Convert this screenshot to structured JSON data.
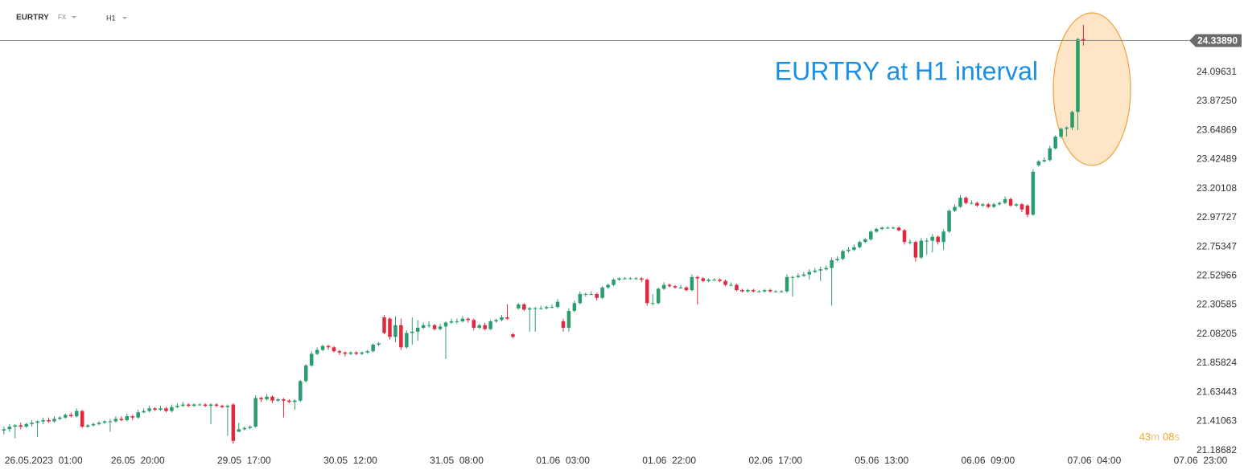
{
  "header": {
    "symbol": "EURTRY",
    "market": "FX",
    "interval": "H1"
  },
  "countdown": [
    "43",
    "m",
    "08",
    "s"
  ],
  "chart_data": {
    "type": "candlestick",
    "annotation": "EURTRY at H1 interval",
    "up_color": "#2a9d6e",
    "down_color": "#e0283e",
    "last_price": {
      "value": 24.3389,
      "label": "24.33890"
    },
    "ylim": [
      21.16,
      24.62
    ],
    "yticks": [
      21.18682,
      21.41063,
      21.63443,
      21.85824,
      22.08205,
      22.30585,
      22.52966,
      22.75347,
      22.97727,
      23.20108,
      23.42489,
      23.64869,
      {
        "value": 23.8725,
        "label": "23.87250"
      },
      24.09631
    ],
    "xlim": [
      -0.7,
      211.5
    ],
    "xticks": [
      {
        "value": 0,
        "label": "26.05.2023  01:00"
      },
      {
        "value": 19,
        "label": "26.05  20:00"
      },
      {
        "value": 38,
        "label": "29.05  17:00"
      },
      {
        "value": 57,
        "label": "30.05  12:00"
      },
      {
        "value": 76,
        "label": "31.05  08:00"
      },
      {
        "value": 95,
        "label": "01.06  03:00"
      },
      {
        "value": 114,
        "label": "01.06  22:00"
      },
      {
        "value": 133,
        "label": "02.06  17:00"
      },
      {
        "value": 152,
        "label": "05.06  13:00"
      },
      {
        "value": 171,
        "label": "06.06  09:00"
      },
      {
        "value": 190,
        "label": "07.06  04:00"
      },
      {
        "value": 209,
        "label": "07.06  23:00"
      }
    ],
    "ohlc": [
      [
        21.34,
        21.37,
        21.31,
        21.35
      ],
      [
        21.35,
        21.39,
        21.33,
        21.37
      ],
      [
        21.37,
        21.39,
        21.28,
        21.38
      ],
      [
        21.38,
        21.4,
        21.35,
        21.37
      ],
      [
        21.37,
        21.4,
        21.36,
        21.39
      ],
      [
        21.39,
        21.42,
        21.37,
        21.4
      ],
      [
        21.4,
        21.42,
        21.29,
        21.41
      ],
      [
        21.41,
        21.44,
        21.39,
        21.42
      ],
      [
        21.42,
        21.44,
        21.4,
        21.41
      ],
      [
        21.41,
        21.45,
        21.4,
        21.43
      ],
      [
        21.43,
        21.45,
        21.42,
        21.44
      ],
      [
        21.44,
        21.47,
        21.43,
        21.46
      ],
      [
        21.46,
        21.48,
        21.44,
        21.45
      ],
      [
        21.45,
        21.51,
        21.44,
        21.49
      ],
      [
        21.49,
        21.5,
        21.36,
        21.37
      ],
      [
        21.37,
        21.39,
        21.36,
        21.38
      ],
      [
        21.38,
        21.4,
        21.37,
        21.39
      ],
      [
        21.39,
        21.41,
        21.38,
        21.4
      ],
      [
        21.4,
        21.42,
        21.39,
        21.41
      ],
      [
        21.41,
        21.43,
        21.33,
        21.41
      ],
      [
        21.41,
        21.45,
        21.4,
        21.43
      ],
      [
        21.43,
        21.45,
        21.41,
        21.42
      ],
      [
        21.42,
        21.47,
        21.41,
        21.45
      ],
      [
        21.45,
        21.46,
        21.42,
        21.44
      ],
      [
        21.44,
        21.5,
        21.43,
        21.48
      ],
      [
        21.48,
        21.51,
        21.47,
        21.49
      ],
      [
        21.49,
        21.53,
        21.48,
        21.51
      ],
      [
        21.51,
        21.52,
        21.49,
        21.5
      ],
      [
        21.5,
        21.53,
        21.49,
        21.51
      ],
      [
        21.51,
        21.52,
        21.48,
        21.49
      ],
      [
        21.49,
        21.54,
        21.48,
        21.52
      ],
      [
        21.52,
        21.55,
        21.51,
        21.53
      ],
      [
        21.53,
        21.56,
        21.52,
        21.54
      ],
      [
        21.54,
        21.55,
        21.52,
        21.53
      ],
      [
        21.53,
        21.55,
        21.52,
        21.54
      ],
      [
        21.54,
        21.55,
        21.53,
        21.54
      ],
      [
        21.54,
        21.55,
        21.52,
        21.53
      ],
      [
        21.53,
        21.55,
        21.39,
        21.54
      ],
      [
        21.54,
        21.55,
        21.52,
        21.53
      ],
      [
        21.53,
        21.54,
        21.51,
        21.52
      ],
      [
        21.52,
        21.54,
        21.3,
        21.53
      ],
      [
        21.54,
        21.55,
        21.24,
        21.26
      ],
      [
        21.33,
        21.4,
        21.33,
        21.35
      ],
      [
        21.35,
        21.37,
        21.34,
        21.36
      ],
      [
        21.36,
        21.38,
        21.35,
        21.37
      ],
      [
        21.37,
        21.61,
        21.36,
        21.59
      ],
      [
        21.59,
        21.6,
        21.56,
        21.58
      ],
      [
        21.58,
        21.62,
        21.57,
        21.6
      ],
      [
        21.6,
        21.61,
        21.55,
        21.57
      ],
      [
        21.57,
        21.59,
        21.56,
        21.58
      ],
      [
        21.58,
        21.59,
        21.44,
        21.57
      ],
      [
        21.57,
        21.58,
        21.55,
        21.56
      ],
      [
        21.56,
        21.58,
        21.5,
        21.57
      ],
      [
        21.57,
        21.73,
        21.56,
        21.72
      ],
      [
        21.72,
        21.85,
        21.71,
        21.84
      ],
      [
        21.84,
        21.95,
        21.83,
        21.93
      ],
      [
        21.93,
        21.98,
        21.92,
        21.96
      ],
      [
        21.96,
        22.0,
        21.95,
        21.99
      ],
      [
        21.99,
        22.0,
        21.96,
        21.98
      ],
      [
        21.98,
        21.99,
        21.94,
        21.95
      ],
      [
        21.95,
        21.96,
        21.92,
        21.94
      ],
      [
        21.94,
        21.95,
        21.91,
        21.93
      ],
      [
        21.93,
        21.95,
        21.92,
        21.94
      ],
      [
        21.94,
        21.95,
        21.92,
        21.93
      ],
      [
        21.93,
        21.95,
        21.92,
        21.94
      ],
      [
        21.94,
        21.96,
        21.93,
        21.95
      ],
      [
        21.95,
        22.01,
        21.94,
        22.0
      ],
      [
        22.0,
        22.02,
        21.99,
        22.01
      ],
      [
        22.21,
        22.23,
        22.08,
        22.09
      ],
      [
        22.2,
        22.21,
        22.04,
        22.06
      ],
      [
        22.06,
        22.22,
        22.02,
        22.15
      ],
      [
        22.15,
        22.2,
        21.96,
        21.98
      ],
      [
        21.98,
        22.11,
        21.97,
        22.09
      ],
      [
        22.09,
        22.21,
        22.0,
        22.1
      ],
      [
        22.1,
        22.19,
        22.03,
        22.13
      ],
      [
        22.13,
        22.17,
        22.12,
        22.15
      ],
      [
        22.15,
        22.18,
        22.13,
        22.15
      ],
      [
        22.15,
        22.16,
        22.11,
        22.12
      ],
      [
        22.12,
        22.16,
        22.11,
        22.14
      ],
      [
        22.14,
        22.18,
        21.89,
        22.17
      ],
      [
        22.17,
        22.2,
        22.16,
        22.18
      ],
      [
        22.18,
        22.2,
        22.16,
        22.18
      ],
      [
        22.18,
        22.22,
        22.17,
        22.2
      ],
      [
        22.2,
        22.21,
        22.17,
        22.19
      ],
      [
        22.19,
        22.2,
        22.11,
        22.13
      ],
      [
        22.13,
        22.16,
        22.12,
        22.15
      ],
      [
        22.15,
        22.17,
        22.11,
        22.12
      ],
      [
        22.12,
        22.19,
        22.11,
        22.18
      ],
      [
        22.18,
        22.2,
        22.17,
        22.19
      ],
      [
        22.19,
        22.23,
        22.18,
        22.21
      ],
      [
        22.21,
        22.31,
        22.19,
        22.2
      ],
      [
        22.08,
        22.09,
        22.05,
        22.06
      ],
      [
        22.28,
        22.32,
        22.27,
        22.31
      ],
      [
        22.31,
        22.32,
        22.26,
        22.27
      ],
      [
        22.27,
        22.29,
        22.1,
        22.28
      ],
      [
        22.28,
        22.29,
        22.1,
        22.28
      ],
      [
        22.28,
        22.3,
        22.27,
        22.28
      ],
      [
        22.28,
        22.3,
        22.27,
        22.29
      ],
      [
        22.29,
        22.31,
        22.28,
        22.29
      ],
      [
        22.29,
        22.35,
        22.28,
        22.33
      ],
      [
        22.18,
        22.2,
        22.1,
        22.13
      ],
      [
        22.13,
        22.28,
        22.1,
        22.26
      ],
      [
        22.26,
        22.34,
        22.25,
        22.32
      ],
      [
        22.32,
        22.41,
        22.31,
        22.39
      ],
      [
        22.39,
        22.4,
        22.37,
        22.39
      ],
      [
        22.39,
        22.41,
        22.38,
        22.39
      ],
      [
        22.39,
        22.4,
        22.34,
        22.36
      ],
      [
        22.36,
        22.45,
        22.35,
        22.44
      ],
      [
        22.44,
        22.47,
        22.43,
        22.46
      ],
      [
        22.46,
        22.51,
        22.45,
        22.5
      ],
      [
        22.5,
        22.52,
        22.49,
        22.51
      ],
      [
        22.51,
        22.52,
        22.5,
        22.51
      ],
      [
        22.51,
        22.52,
        22.5,
        22.51
      ],
      [
        22.51,
        22.52,
        22.5,
        22.51
      ],
      [
        22.51,
        22.52,
        22.48,
        22.5
      ],
      [
        22.5,
        22.51,
        22.3,
        22.32
      ],
      [
        22.32,
        22.39,
        22.3,
        22.32
      ],
      [
        22.32,
        22.44,
        22.31,
        22.43
      ],
      [
        22.43,
        22.48,
        22.42,
        22.46
      ],
      [
        22.46,
        22.47,
        22.44,
        22.45
      ],
      [
        22.45,
        22.46,
        22.43,
        22.44
      ],
      [
        22.44,
        22.46,
        22.43,
        22.44
      ],
      [
        22.44,
        22.45,
        22.41,
        22.42
      ],
      [
        22.42,
        22.54,
        22.41,
        22.52
      ],
      [
        22.52,
        22.53,
        22.31,
        22.51
      ],
      [
        22.51,
        22.52,
        22.48,
        22.49
      ],
      [
        22.49,
        22.51,
        22.48,
        22.5
      ],
      [
        22.5,
        22.51,
        22.49,
        22.5
      ],
      [
        22.5,
        22.51,
        22.48,
        22.49
      ],
      [
        22.49,
        22.5,
        22.45,
        22.46
      ],
      [
        22.46,
        22.48,
        22.45,
        22.46
      ],
      [
        22.46,
        22.47,
        22.41,
        22.42
      ],
      [
        22.42,
        22.43,
        22.4,
        22.41
      ],
      [
        22.41,
        22.43,
        22.4,
        22.42
      ],
      [
        22.42,
        22.43,
        22.4,
        22.41
      ],
      [
        22.41,
        22.42,
        22.4,
        22.41
      ],
      [
        22.41,
        22.43,
        22.4,
        22.42
      ],
      [
        22.42,
        22.43,
        22.4,
        22.41
      ],
      [
        22.41,
        22.42,
        22.4,
        22.41
      ],
      [
        22.41,
        22.42,
        22.4,
        22.41
      ],
      [
        22.41,
        22.54,
        22.4,
        22.52
      ],
      [
        22.52,
        22.53,
        22.37,
        22.52
      ],
      [
        22.52,
        22.55,
        22.51,
        22.53
      ],
      [
        22.53,
        22.56,
        22.52,
        22.54
      ],
      [
        22.54,
        22.58,
        22.5,
        22.56
      ],
      [
        22.56,
        22.59,
        22.55,
        22.57
      ],
      [
        22.57,
        22.6,
        22.49,
        22.58
      ],
      [
        22.58,
        22.61,
        22.57,
        22.59
      ],
      [
        22.59,
        22.67,
        22.3,
        22.65
      ],
      [
        22.65,
        22.68,
        22.64,
        22.66
      ],
      [
        22.66,
        22.73,
        22.65,
        22.72
      ],
      [
        22.72,
        22.75,
        22.71,
        22.73
      ],
      [
        22.73,
        22.77,
        22.72,
        22.75
      ],
      [
        22.75,
        22.8,
        22.74,
        22.79
      ],
      [
        22.79,
        22.82,
        22.78,
        22.81
      ],
      [
        22.81,
        22.88,
        22.8,
        22.87
      ],
      [
        22.87,
        22.9,
        22.86,
        22.89
      ],
      [
        22.89,
        22.91,
        22.88,
        22.9
      ],
      [
        22.9,
        22.91,
        22.89,
        22.9
      ],
      [
        22.9,
        22.91,
        22.89,
        22.9
      ],
      [
        22.9,
        22.91,
        22.87,
        22.88
      ],
      [
        22.88,
        22.89,
        22.77,
        22.79
      ],
      [
        22.79,
        22.81,
        22.77,
        22.79
      ],
      [
        22.79,
        22.8,
        22.64,
        22.67
      ],
      [
        22.67,
        22.82,
        22.66,
        22.8
      ],
      [
        22.8,
        22.82,
        22.69,
        22.8
      ],
      [
        22.8,
        22.85,
        22.71,
        22.83
      ],
      [
        22.83,
        22.84,
        22.77,
        22.79
      ],
      [
        22.79,
        22.89,
        22.73,
        22.87
      ],
      [
        22.87,
        23.04,
        22.86,
        23.03
      ],
      [
        23.03,
        23.08,
        23.02,
        23.06
      ],
      [
        23.06,
        23.15,
        23.05,
        23.13
      ],
      [
        23.13,
        23.14,
        23.08,
        23.09
      ],
      [
        23.09,
        23.11,
        23.08,
        23.09
      ],
      [
        23.09,
        23.1,
        23.06,
        23.07
      ],
      [
        23.07,
        23.09,
        23.06,
        23.08
      ],
      [
        23.08,
        23.09,
        23.05,
        23.06
      ],
      [
        23.06,
        23.09,
        23.05,
        23.08
      ],
      [
        23.08,
        23.1,
        23.07,
        23.09
      ],
      [
        23.09,
        23.14,
        23.08,
        23.12
      ],
      [
        23.12,
        23.13,
        23.06,
        23.07
      ],
      [
        23.07,
        23.09,
        23.06,
        23.08
      ],
      [
        23.08,
        23.09,
        23.02,
        23.04
      ],
      [
        23.07,
        23.08,
        22.98,
        23.0
      ],
      [
        23.0,
        23.35,
        22.99,
        23.33
      ],
      [
        23.38,
        23.42,
        23.37,
        23.41
      ],
      [
        23.41,
        23.44,
        23.4,
        23.42
      ],
      [
        23.42,
        23.53,
        23.41,
        23.51
      ],
      [
        23.51,
        23.61,
        23.5,
        23.6
      ],
      [
        23.6,
        23.67,
        23.59,
        23.66
      ],
      [
        23.66,
        23.68,
        23.6,
        23.67
      ],
      [
        23.67,
        23.8,
        23.65,
        23.79
      ],
      [
        23.79,
        24.36,
        23.65,
        24.35
      ],
      [
        24.35,
        24.46,
        24.3,
        24.34
      ]
    ]
  }
}
